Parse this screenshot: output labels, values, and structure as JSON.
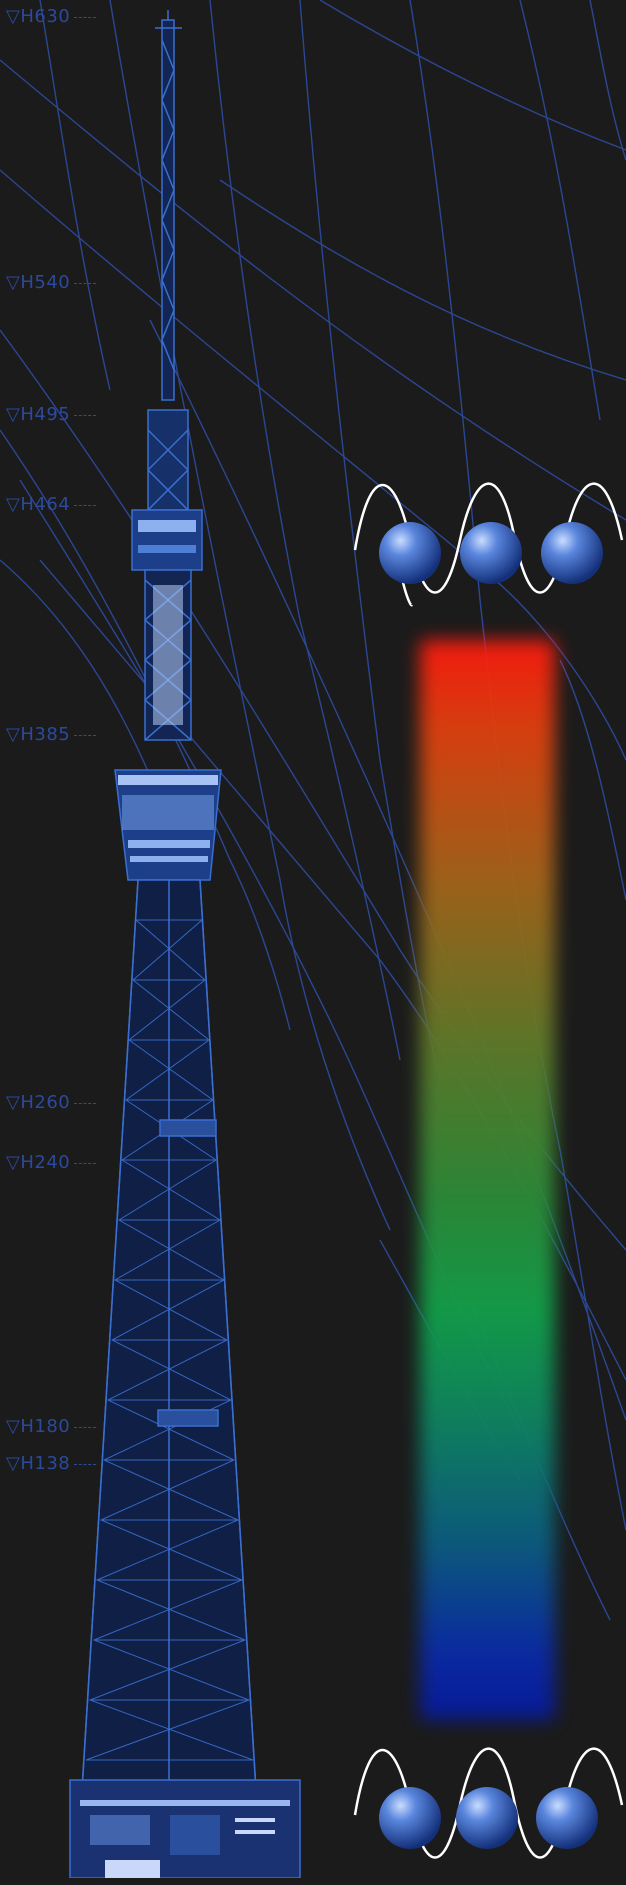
{
  "height_labels": [
    {
      "text": "▽H630"
    },
    {
      "text": "▽H540"
    },
    {
      "text": "▽H495"
    },
    {
      "text": "▽H464"
    },
    {
      "text": "▽H385"
    },
    {
      "text": "▽H260"
    },
    {
      "text": "▽H240"
    },
    {
      "text": "▽H180"
    },
    {
      "text": "▽H138"
    }
  ],
  "colors": {
    "background": "#1b1b1b",
    "tower_blue": "#3a6fd0",
    "label_blue": "#2b4a9c",
    "wave_white": "#ffffff",
    "sphere_blue": "#3b63c2"
  },
  "icons": [
    "tower-illustration",
    "wave-spheres-top",
    "wave-spheres-bottom",
    "spectrum-gradient-bar"
  ]
}
